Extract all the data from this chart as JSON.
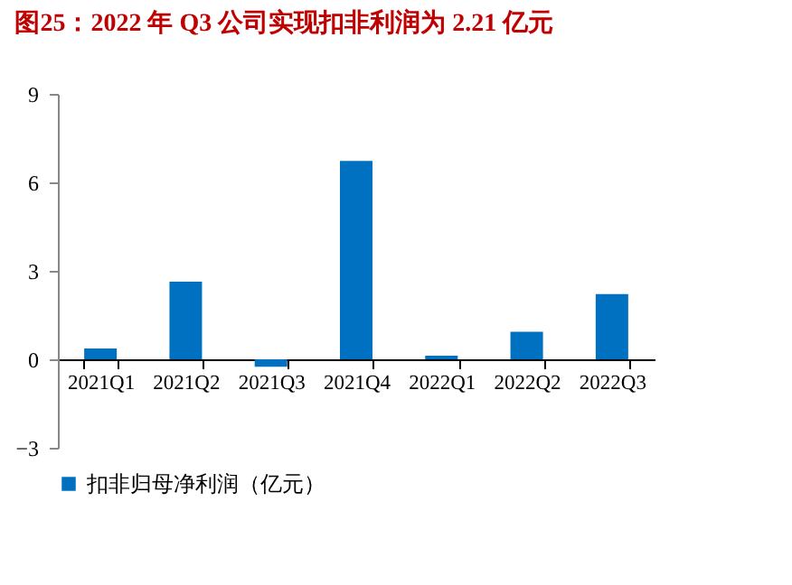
{
  "chart_data": {
    "type": "bar",
    "title": "图25：2022 年 Q3 公司实现扣非利润为 2.21 亿元",
    "categories": [
      "2021Q1",
      "2021Q2",
      "2021Q3",
      "2021Q4",
      "2022Q1",
      "2022Q2",
      "2022Q3"
    ],
    "series": [
      {
        "name": "扣非归母净利润（亿元）",
        "color": "#0070c0",
        "values": [
          0.37,
          2.63,
          -0.25,
          6.73,
          0.12,
          0.93,
          2.21
        ]
      }
    ],
    "ylim": [
      -3,
      9
    ],
    "yticks": [
      -3,
      0,
      3,
      6,
      9
    ],
    "grid": false,
    "legend": "bottom"
  }
}
